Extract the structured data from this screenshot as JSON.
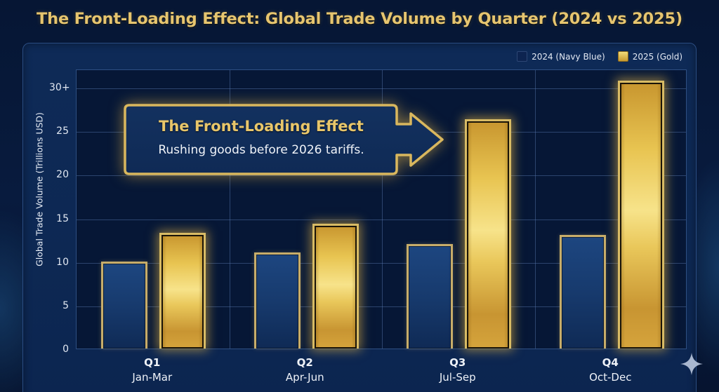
{
  "title": "The Front-Loading Effect: Global Trade Volume by Quarter (2024 vs 2025)",
  "legend": [
    {
      "label": "2024 (Navy Blue)",
      "color": "#0d2450"
    },
    {
      "label": "2025 (Gold)",
      "color": "#e0bd55"
    }
  ],
  "callout": {
    "title": "The Front-Loading Effect",
    "subtitle": "Rushing goods before 2026 tariffs."
  },
  "axis": {
    "ylabel": "Global Trade Volume (Trillions USD)",
    "yticks": [
      "0",
      "5",
      "10",
      "15",
      "20",
      "25",
      "30+"
    ]
  },
  "categories": [
    {
      "q": "Q1",
      "months": "Jan-Mar"
    },
    {
      "q": "Q2",
      "months": "Apr-Jun"
    },
    {
      "q": "Q3",
      "months": "Jul-Sep"
    },
    {
      "q": "Q4",
      "months": "Oct-Dec"
    }
  ],
  "chart_data": {
    "type": "bar",
    "title": "The Front-Loading Effect: Global Trade Volume by Quarter (2024 vs 2025)",
    "categories": [
      "Q1 Jan-Mar",
      "Q2 Apr-Jun",
      "Q3 Jul-Sep",
      "Q4 Oct-Dec"
    ],
    "series": [
      {
        "name": "2024 (Navy Blue)",
        "color": "#1a3f75",
        "values": [
          10,
          11,
          12,
          13
        ]
      },
      {
        "name": "2025 (Gold)",
        "color": "#e0bd55",
        "values": [
          13.3,
          14.3,
          26.3,
          30.7
        ]
      }
    ],
    "xlabel": "",
    "ylabel": "Global Trade Volume (Trillions USD)",
    "ylim": [
      0,
      30
    ],
    "yticks": [
      0,
      5,
      10,
      15,
      20,
      25,
      30
    ],
    "ytick_labels": [
      "0",
      "5",
      "10",
      "15",
      "20",
      "25",
      "30+"
    ],
    "grid": true,
    "legend_position": "top-right",
    "annotations": [
      {
        "text": "The Front-Loading Effect",
        "subtext": "Rushing goods before 2026 tariffs.",
        "points_to": "Q3 2025"
      }
    ]
  }
}
